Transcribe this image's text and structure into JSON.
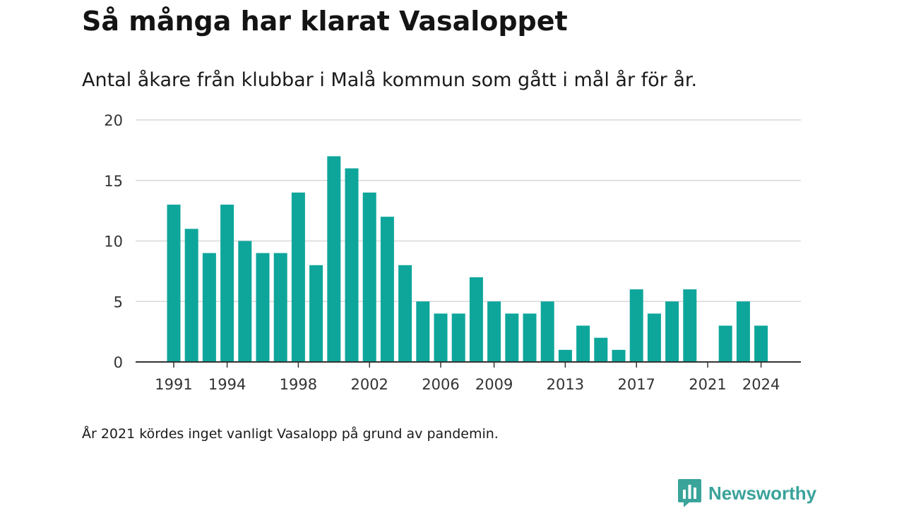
{
  "title": "Så många har klarat Vasaloppet",
  "subtitle": "Antal åkare från klubbar i Malå kommun som gått i mål år för år.",
  "note": "År 2021 kördes inget vanligt Vasalopp på grund av pandemin.",
  "brand": {
    "name": "Newsworthy",
    "icon": "newsworthy-logo-icon",
    "color": "#3aa39a"
  },
  "chart_data": {
    "type": "bar",
    "title": "Så många har klarat Vasaloppet",
    "subtitle": "Antal åkare från klubbar i Malå kommun som gått i mål år för år.",
    "xlabel": "",
    "ylabel": "",
    "ylim": [
      0,
      20
    ],
    "y_ticks": [
      0,
      5,
      10,
      15,
      20
    ],
    "x_tick_labels": [
      "1991",
      "1994",
      "1998",
      "2002",
      "2006",
      "2009",
      "2013",
      "2017",
      "2021",
      "2024"
    ],
    "grid": true,
    "bar_color": "#0ea69b",
    "categories": [
      "1991",
      "1992",
      "1993",
      "1994",
      "1995",
      "1996",
      "1997",
      "1998",
      "1999",
      "2000",
      "2001",
      "2002",
      "2003",
      "2004",
      "2005",
      "2006",
      "2007",
      "2008",
      "2009",
      "2010",
      "2011",
      "2012",
      "2013",
      "2014",
      "2015",
      "2016",
      "2017",
      "2018",
      "2019",
      "2020",
      "2021",
      "2022",
      "2023",
      "2024"
    ],
    "values": [
      13,
      11,
      9,
      13,
      10,
      9,
      9,
      14,
      8,
      17,
      16,
      14,
      12,
      8,
      5,
      4,
      4,
      7,
      5,
      4,
      4,
      5,
      1,
      3,
      2,
      1,
      6,
      4,
      5,
      6,
      0,
      3,
      5,
      3
    ]
  }
}
